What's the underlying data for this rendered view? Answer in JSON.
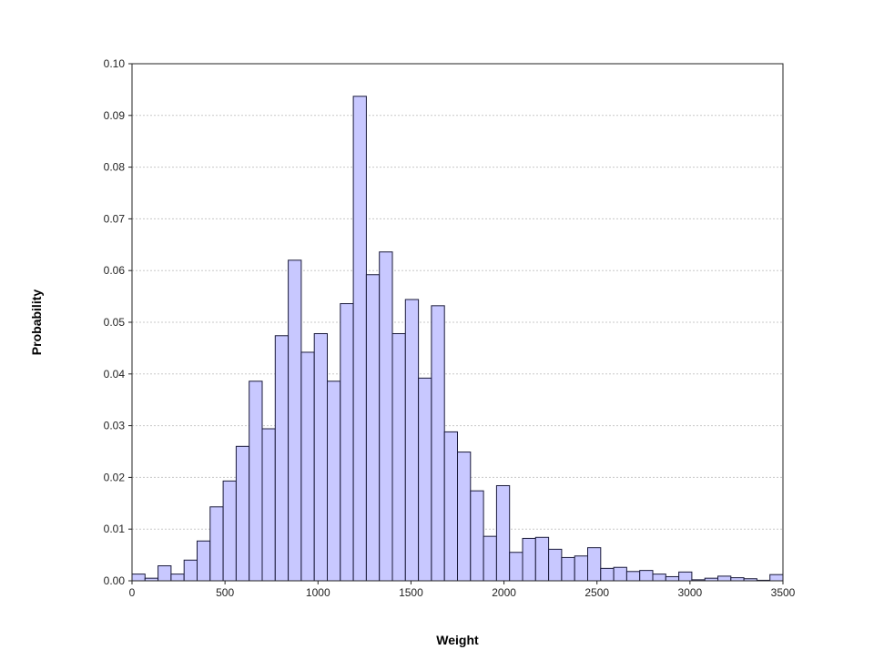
{
  "chart_data": {
    "type": "bar",
    "subtype": "histogram",
    "title": "",
    "xlabel": "Weight",
    "ylabel": "Probability",
    "xlim": [
      0,
      3500
    ],
    "ylim": [
      0,
      0.1
    ],
    "bin_width": 70,
    "x_ticks": [
      "0",
      "500",
      "1000",
      "1500",
      "2000",
      "2500",
      "3000",
      "3500"
    ],
    "y_ticks": [
      "0.00",
      "0.01",
      "0.02",
      "0.03",
      "0.04",
      "0.05",
      "0.06",
      "0.07",
      "0.08",
      "0.09",
      "0.10"
    ],
    "grid": "horizontal dotted",
    "bar_color": "#c8c8ff",
    "edge_color": "#1a1a3a",
    "bins_start": [
      0,
      70,
      140,
      210,
      280,
      350,
      420,
      490,
      560,
      630,
      700,
      770,
      840,
      910,
      980,
      1050,
      1120,
      1190,
      1260,
      1330,
      1400,
      1470,
      1540,
      1610,
      1680,
      1750,
      1820,
      1890,
      1960,
      2030,
      2100,
      2170,
      2240,
      2310,
      2380,
      2450,
      2520,
      2590,
      2660,
      2730,
      2800,
      2870,
      2940,
      3010,
      3080,
      3150,
      3220,
      3290,
      3360,
      3430
    ],
    "values": [
      0.0013,
      0.0005,
      0.0029,
      0.0013,
      0.004,
      0.0077,
      0.0143,
      0.0193,
      0.026,
      0.0386,
      0.0294,
      0.0474,
      0.062,
      0.0442,
      0.0478,
      0.0386,
      0.0536,
      0.0937,
      0.0592,
      0.0636,
      0.0478,
      0.0544,
      0.0392,
      0.0532,
      0.0288,
      0.0249,
      0.0174,
      0.0086,
      0.0184,
      0.0055,
      0.0082,
      0.0084,
      0.0061,
      0.0045,
      0.0048,
      0.0064,
      0.0024,
      0.0026,
      0.0018,
      0.002,
      0.0013,
      0.0008,
      0.0017,
      0.0002,
      0.0005,
      0.0009,
      0.0006,
      0.0004,
      0.0001,
      0.0012
    ]
  }
}
